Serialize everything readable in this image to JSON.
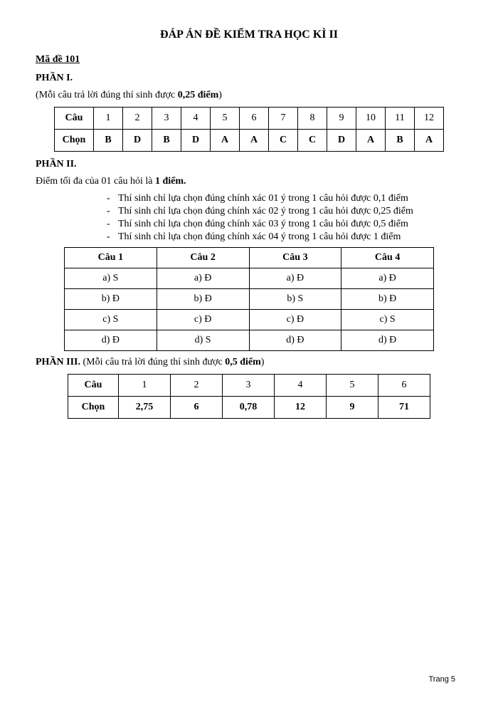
{
  "title": "ĐÁP ÁN ĐỀ KIỂM TRA HỌC KÌ II",
  "exam_code_label": "Mã đề 101",
  "part1": {
    "heading": "PHẦN I.",
    "note_pre": "(Mỗi câu trả lời đúng thí sinh được ",
    "note_bold": "0,25 điểm",
    "note_post": ")",
    "row_label_q": "Câu",
    "row_label_a": "Chọn",
    "questions": [
      "1",
      "2",
      "3",
      "4",
      "5",
      "6",
      "7",
      "8",
      "9",
      "10",
      "11",
      "12"
    ],
    "answers": [
      "B",
      "D",
      "B",
      "D",
      "A",
      "A",
      "C",
      "C",
      "D",
      "A",
      "B",
      "A"
    ]
  },
  "part2": {
    "heading": "PHẦN II.",
    "max_pre": "Điểm tối đa của 01 câu hỏi là ",
    "max_bold": "1 điểm.",
    "bullets": [
      {
        "pre": "Thí sinh chỉ lựa chọn đúng chính xác 01 ý trong 1 câu hỏi được ",
        "bold": "0,1 điểm"
      },
      {
        "pre": "Thí sinh chỉ lựa chọn đúng chính xác 02 ý trong 1 câu hỏi được ",
        "bold": "0,25 điểm"
      },
      {
        "pre": "Thí sinh chỉ lựa chọn đúng chính xác 03 ý trong 1 câu hỏi được ",
        "bold": "0,5 điểm"
      },
      {
        "pre": "Thí sinh chỉ lựa chọn đúng chính xác 04 ý trong 1 câu hỏi được ",
        "bold": "1 điểm"
      }
    ],
    "headers": [
      "Câu 1",
      "Câu 2",
      "Câu 3",
      "Câu 4"
    ],
    "rows": [
      [
        "a) S",
        "a) Đ",
        "a) Đ",
        "a) Đ"
      ],
      [
        "b) Đ",
        "b) Đ",
        "b) S",
        "b) Đ"
      ],
      [
        "c) S",
        "c) Đ",
        "c) Đ",
        "c) S"
      ],
      [
        "d) Đ",
        "d) S",
        "d) Đ",
        "d) Đ"
      ]
    ]
  },
  "part3": {
    "heading_bold": "PHẦN III.",
    "heading_rest_pre": " (Mỗi câu trả lời đúng thí sinh được ",
    "heading_rest_bold": "0,5 điểm",
    "heading_rest_post": ")",
    "row_label_q": "Câu",
    "row_label_a": "Chọn",
    "questions": [
      "1",
      "2",
      "3",
      "4",
      "5",
      "6"
    ],
    "answers": [
      "2,75",
      "6",
      "0,78",
      "12",
      "9",
      "71"
    ]
  },
  "footer": "Trang 5"
}
